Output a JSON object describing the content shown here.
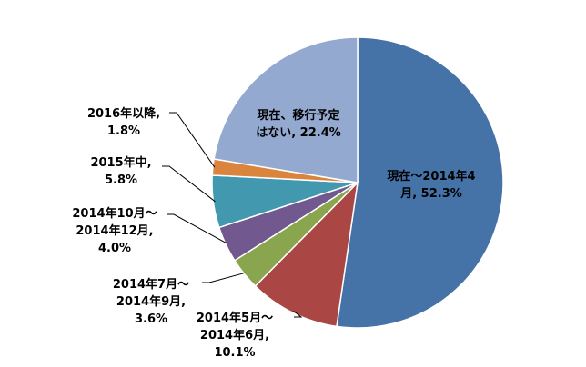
{
  "chart_data": {
    "type": "pie",
    "title": "",
    "legend": "none",
    "start_angle_deg": 0,
    "direction": "clockwise",
    "slices": [
      {
        "label_lines": [
          "現在～2014年4",
          "月, 52.3%"
        ],
        "category": "現在～2014年4月",
        "value": 52.3,
        "color": "#4572A7"
      },
      {
        "label_lines": [
          "2014年5月～",
          "2014年6月,",
          "10.1%"
        ],
        "category": "2014年5月～2014年6月",
        "value": 10.1,
        "color": "#AA4643"
      },
      {
        "label_lines": [
          "2014年7月～",
          "2014年9月,",
          "3.6%"
        ],
        "category": "2014年7月～2014年9月",
        "value": 3.6,
        "color": "#89A54E"
      },
      {
        "label_lines": [
          "2014年10月～",
          "2014年12月,",
          "4.0%"
        ],
        "category": "2014年10月～2014年12月",
        "value": 4.0,
        "color": "#71588F"
      },
      {
        "label_lines": [
          "2015年中,",
          "5.8%"
        ],
        "category": "2015年中",
        "value": 5.8,
        "color": "#4198AF"
      },
      {
        "label_lines": [
          "2016年以降,",
          "1.8%"
        ],
        "category": "2016年以降",
        "value": 1.8,
        "color": "#DB843D"
      },
      {
        "label_lines": [
          "現在、移行予定",
          "はない, 22.4%"
        ],
        "category": "現在、移行予定はない",
        "value": 22.4,
        "color": "#93A9CF"
      }
    ]
  }
}
